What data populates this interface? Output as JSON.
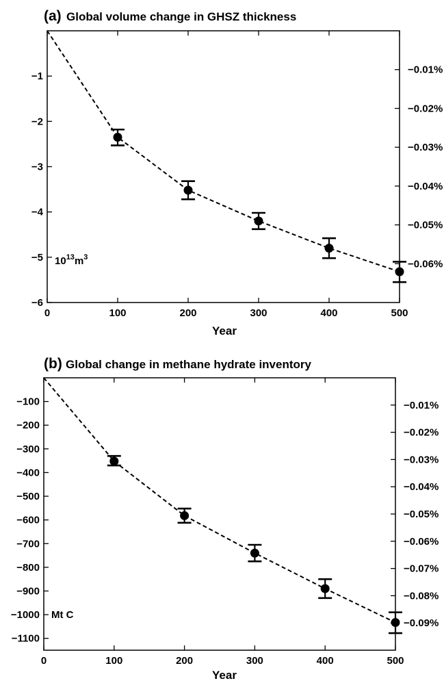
{
  "chart_data": [
    {
      "type": "line",
      "panel_label": "(a)",
      "title": "Global volume change in GHSZ thickness",
      "xlabel": "Year",
      "ylabel": "",
      "unit_label": {
        "base": "10",
        "exp1": "13",
        "mid": "m",
        "exp2": "3"
      },
      "xlim": [
        0,
        500
      ],
      "ylim": [
        -6,
        0
      ],
      "xticks": [
        0,
        100,
        200,
        300,
        400,
        500
      ],
      "yticks": [
        -6,
        -5,
        -4,
        -3,
        -2,
        -1
      ],
      "ytick_labels": [
        "−6",
        "−5",
        "−4",
        "−3",
        "−2",
        "−1"
      ],
      "right_ylim": [
        -0.07,
        0
      ],
      "right_yticks": [
        -0.06,
        -0.05,
        -0.04,
        -0.03,
        -0.02,
        -0.01
      ],
      "right_ytick_labels": [
        "−0.06%",
        "−0.05%",
        "−0.04%",
        "−0.03%",
        "−0.02%",
        "−0.01%"
      ],
      "grid": false,
      "series": [
        {
          "line_style": "dashed",
          "x": [
            0,
            100,
            200,
            300,
            400,
            500
          ],
          "y": [
            0,
            -2.35,
            -3.52,
            -4.2,
            -4.8,
            -5.32
          ],
          "error_low": [
            null,
            -2.53,
            -3.72,
            -4.38,
            -5.02,
            -5.55
          ],
          "error_high": [
            null,
            -2.18,
            -3.32,
            -4.02,
            -4.58,
            -5.1
          ]
        }
      ]
    },
    {
      "type": "line",
      "panel_label": "(b)",
      "title": "Global change in methane hydrate inventory",
      "xlabel": "Year",
      "ylabel": "",
      "unit_label": {
        "base": "Mt C"
      },
      "xlim": [
        0,
        500
      ],
      "ylim": [
        -1150,
        0
      ],
      "xticks": [
        0,
        100,
        200,
        300,
        400,
        500
      ],
      "yticks": [
        -1100,
        -1000,
        -900,
        -800,
        -700,
        -600,
        -500,
        -400,
        -300,
        -200,
        -100
      ],
      "ytick_labels": [
        "−1100",
        "−1000",
        "−900",
        "−800",
        "−700",
        "−600",
        "−500",
        "−400",
        "−300",
        "−200",
        "−100"
      ],
      "right_ylim": [
        -0.1,
        0
      ],
      "right_yticks": [
        -0.09,
        -0.08,
        -0.07,
        -0.06,
        -0.05,
        -0.04,
        -0.03,
        -0.02,
        -0.01
      ],
      "right_ytick_labels": [
        "−0.09%",
        "−0.08%",
        "−0.07%",
        "−0.06%",
        "−0.05%",
        "−0.04%",
        "−0.03%",
        "−0.02%",
        "−0.01%"
      ],
      "grid": false,
      "series": [
        {
          "line_style": "dashed",
          "x": [
            0,
            100,
            200,
            300,
            400,
            500
          ],
          "y": [
            0,
            -352,
            -582,
            -740,
            -890,
            -1033
          ],
          "error_low": [
            null,
            -370,
            -612,
            -775,
            -930,
            -1078
          ],
          "error_high": [
            null,
            -330,
            -552,
            -705,
            -850,
            -990
          ]
        }
      ]
    }
  ]
}
